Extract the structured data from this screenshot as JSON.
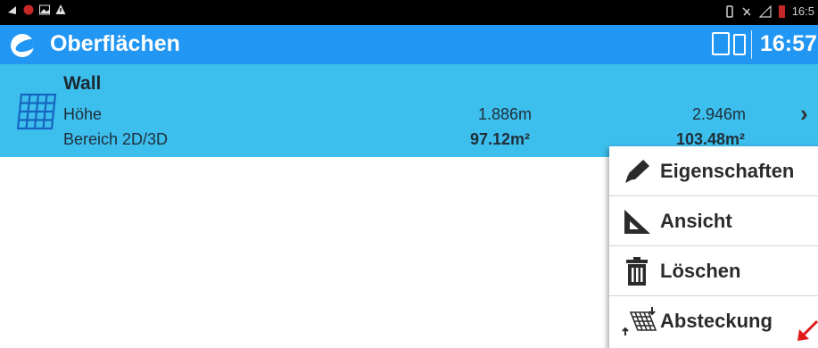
{
  "status_bar": {
    "time": "16:5",
    "icons": [
      "sim-icon",
      "notification-icon",
      "image-icon",
      "warning-icon",
      "vibrate-icon",
      "no-call-icon",
      "signal-icon",
      "battery-icon"
    ]
  },
  "app_bar": {
    "title": "Oberflächen",
    "time": "16:57",
    "icons": [
      "app-logo-icon",
      "tablet-icon",
      "phone-icon"
    ]
  },
  "surface": {
    "name": "Wall",
    "label_height": "Höhe",
    "label_area": "Bereich 2D/3D",
    "height_min": "1.886m",
    "height_max": "2.946m",
    "area_2d": "97.12m²",
    "area_3d": "103.48m²",
    "icon": "surface-grid-icon"
  },
  "context_menu": {
    "items": [
      {
        "label": "Eigenschaften",
        "icon": "pencil-icon"
      },
      {
        "label": "Ansicht",
        "icon": "set-square-icon"
      },
      {
        "label": "Löschen",
        "icon": "trash-icon"
      },
      {
        "label": "Absteckung",
        "icon": "stakeout-grid-icon"
      }
    ]
  },
  "colors": {
    "status_bar": "#000000",
    "app_bar": "#2196f3",
    "selected_row": "#3dbfee",
    "icon_blue": "#1565c0",
    "annotation_arrow": "#e01919"
  }
}
